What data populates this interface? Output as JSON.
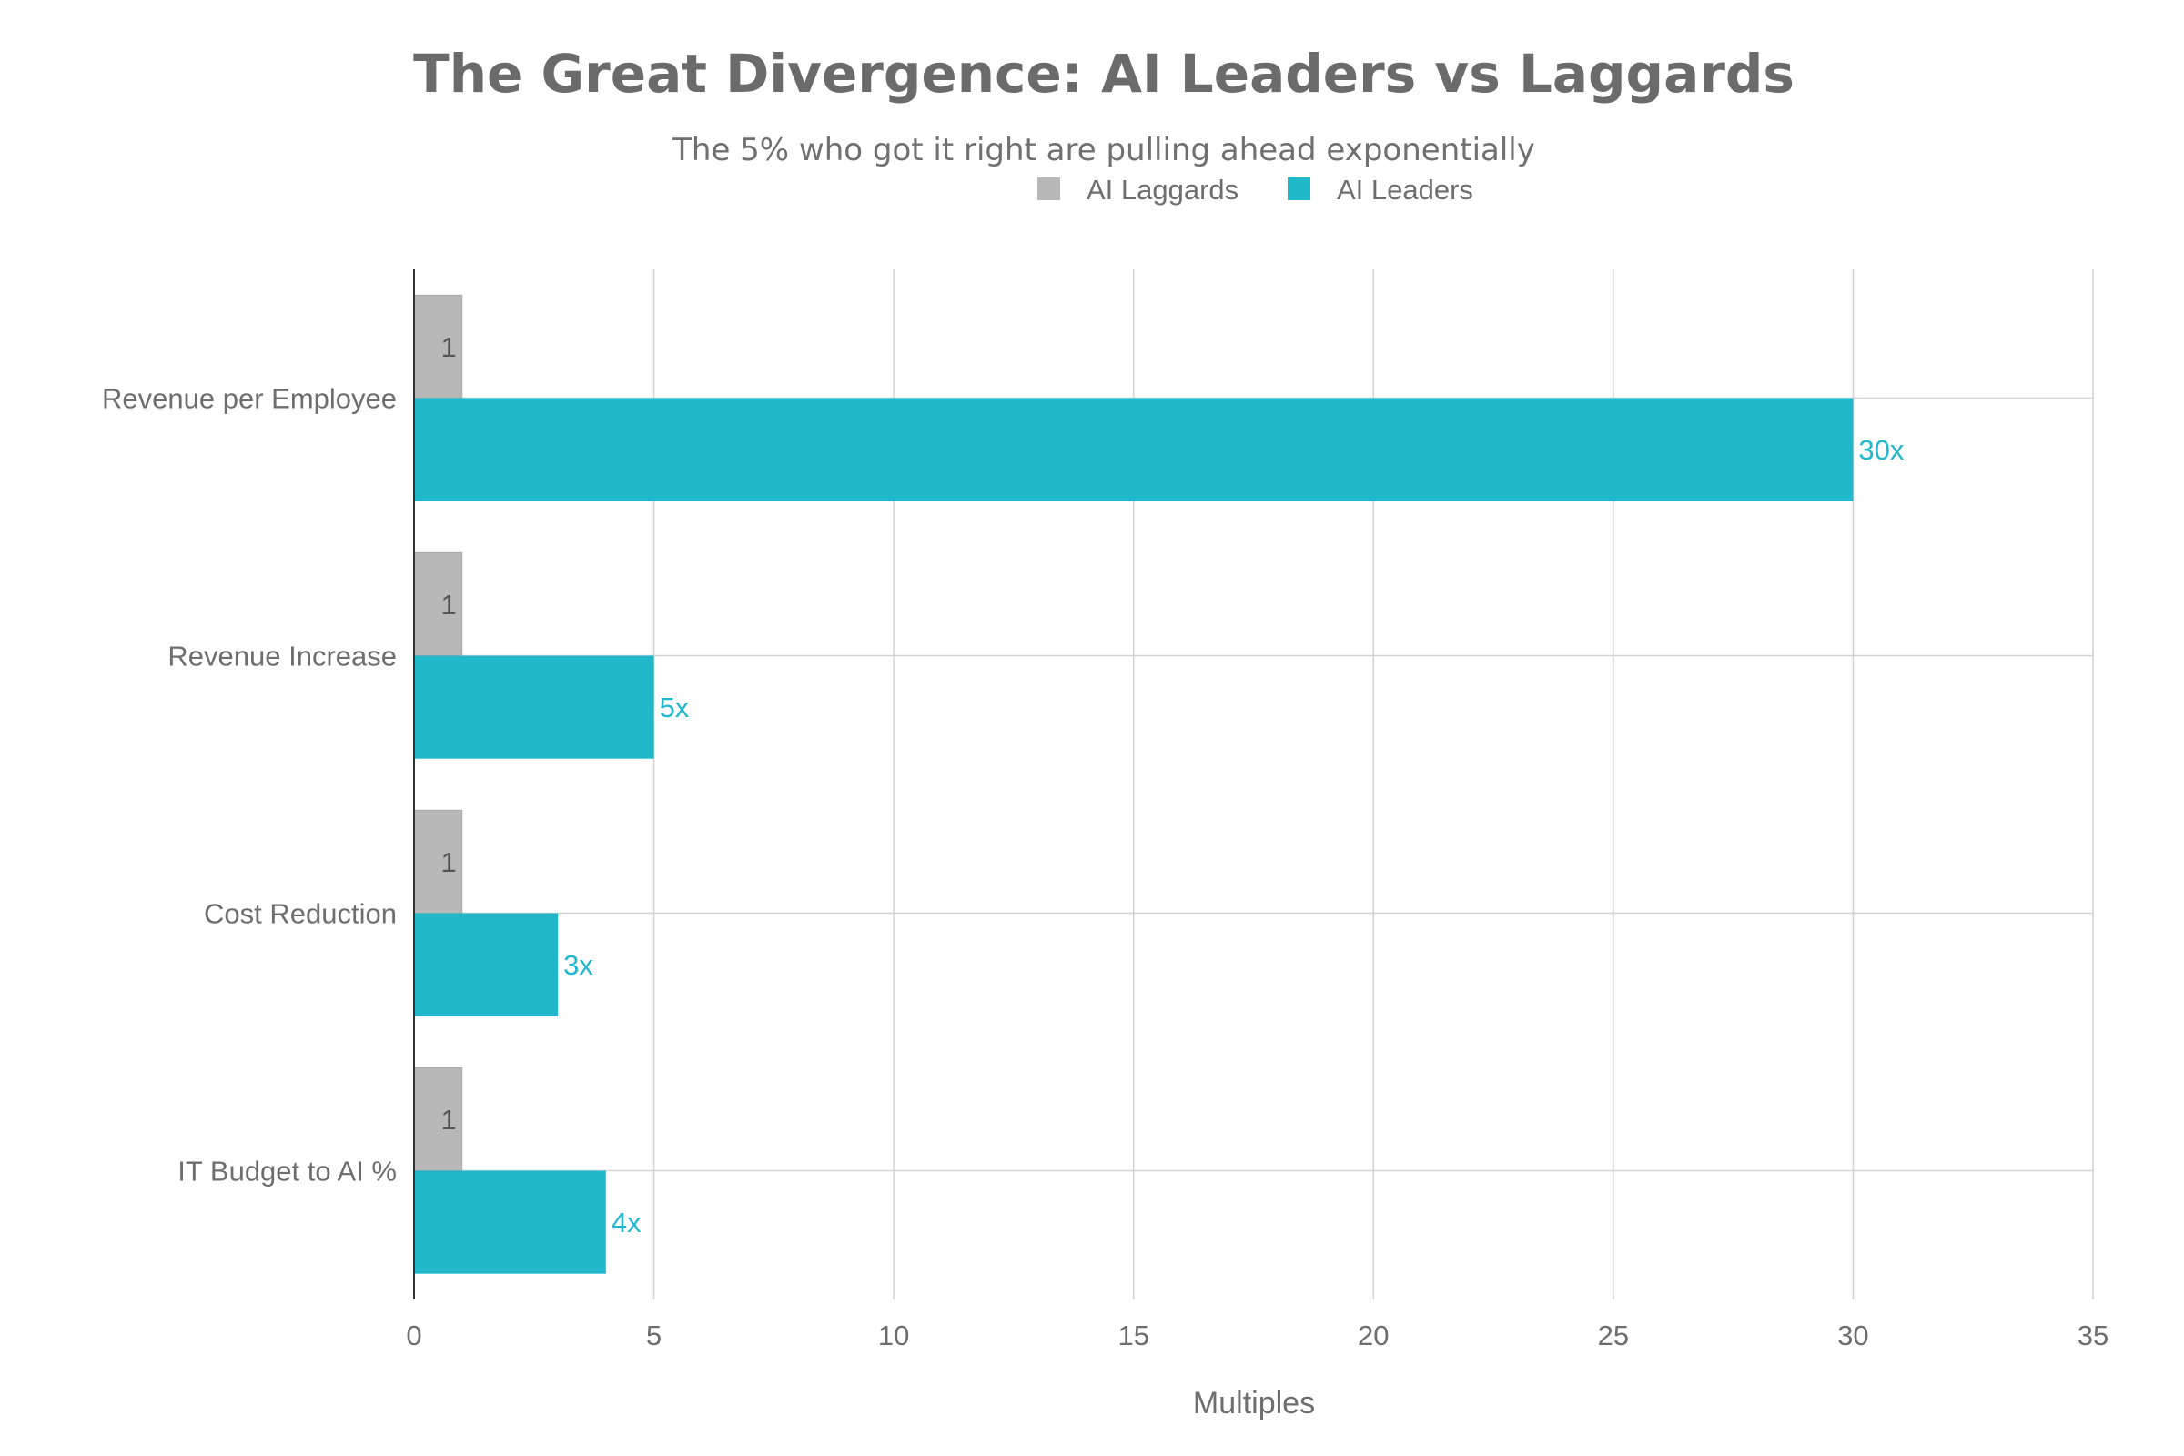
{
  "chart_data": {
    "type": "bar",
    "orientation": "horizontal",
    "title": "The Great Divergence: AI Leaders vs Laggards",
    "subtitle": "The 5% who got it right are pulling ahead exponentially",
    "categories": [
      "Revenue per Employee",
      "Revenue Increase",
      "Cost Reduction",
      "IT Budget to AI %"
    ],
    "series": [
      {
        "name": "AI Laggards",
        "color": "#b8b8b8",
        "values": [
          1,
          1,
          1,
          1
        ],
        "labels": [
          "1",
          "1",
          "1",
          "1"
        ]
      },
      {
        "name": "AI Leaders",
        "color": "#21b8cc",
        "values": [
          30,
          5,
          3,
          4
        ],
        "labels": [
          "30x",
          "5x",
          "3x",
          "4x"
        ]
      }
    ],
    "xlabel": "Multiples",
    "ylabel": "",
    "xlim": [
      0,
      35
    ],
    "xticks": [
      "0",
      "5",
      "10",
      "15",
      "20",
      "25",
      "30",
      "35"
    ],
    "grid": true,
    "legend_position": "top-center"
  }
}
